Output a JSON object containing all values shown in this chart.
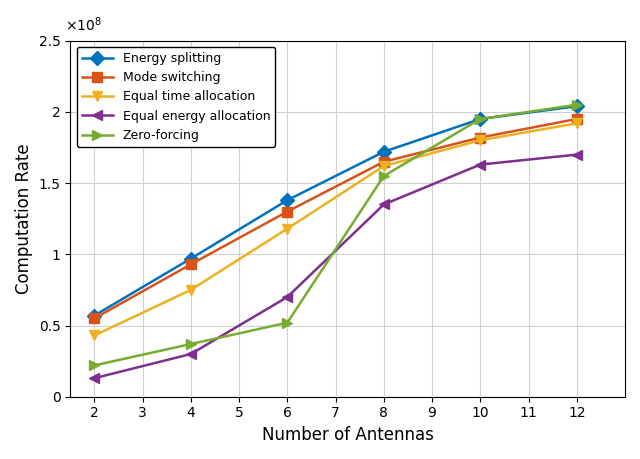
{
  "x": [
    2,
    4,
    6,
    8,
    10,
    12
  ],
  "series": {
    "Energy splitting": [
      57000000.0,
      97000000.0,
      138000000.0,
      172000000.0,
      195000000.0,
      204000000.0
    ],
    "Mode switching": [
      55000000.0,
      93000000.0,
      130000000.0,
      165000000.0,
      182000000.0,
      195000000.0
    ],
    "Equal time allocation": [
      43000000.0,
      75000000.0,
      118000000.0,
      162000000.0,
      180000000.0,
      192000000.0
    ],
    "Equal energy allocation": [
      13000000.0,
      30000000.0,
      70000000.0,
      135000000.0,
      163000000.0,
      170000000.0
    ],
    "Zero-forcing": [
      22000000.0,
      37000000.0,
      52000000.0,
      155000000.0,
      195000000.0,
      205000000.0
    ]
  },
  "colors": {
    "Energy splitting": "#0072BD",
    "Mode switching": "#D95319",
    "Equal time allocation": "#EDB120",
    "Equal energy allocation": "#7E2F8E",
    "Zero-forcing": "#77AC30"
  },
  "markers": {
    "Energy splitting": "D",
    "Mode switching": "s",
    "Equal time allocation": "v",
    "Equal energy allocation": "<",
    "Zero-forcing": ">"
  },
  "xlabel": "Number of Antennas",
  "ylabel": "Computation Rate",
  "ylim": [
    0,
    250000000.0
  ],
  "xlim": [
    1.5,
    13
  ],
  "yticks": [
    0,
    50000000.0,
    100000000.0,
    150000000.0,
    200000000.0,
    250000000.0
  ],
  "ytick_labels": [
    "0",
    "0.5",
    "1",
    "1.5",
    "2",
    "2.5"
  ],
  "xticks": [
    2,
    3,
    4,
    5,
    6,
    7,
    8,
    9,
    10,
    11,
    12
  ],
  "figsize": [
    6.4,
    4.59
  ],
  "dpi": 100
}
